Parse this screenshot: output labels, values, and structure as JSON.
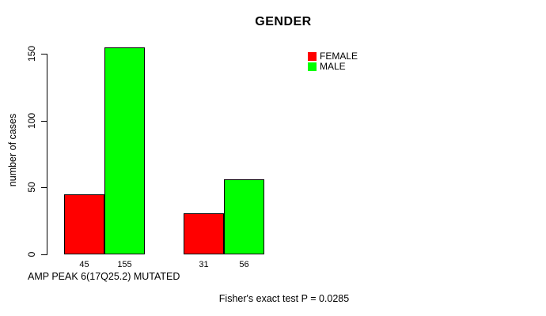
{
  "figure": {
    "title": "GENDER",
    "y_axis": {
      "label": "number of cases"
    },
    "x_axis": {
      "label": "AMP PEAK 6(17Q25.2) MUTATED"
    },
    "annotation": "Fisher's exact test P = 0.0285"
  },
  "chart_data": {
    "type": "bar",
    "title": "GENDER",
    "xlabel": "AMP PEAK 6(17Q25.2) MUTATED",
    "ylabel": "number of cases",
    "ylim": [
      0,
      150
    ],
    "yticks": [
      0,
      50,
      100,
      150
    ],
    "categories": [
      "",
      ""
    ],
    "series": [
      {
        "name": "FEMALE",
        "color": "#FF0000",
        "values": [
          45,
          31
        ]
      },
      {
        "name": "MALE",
        "color": "#00FF00",
        "values": [
          155,
          56
        ]
      }
    ],
    "bar_value_labels": [
      [
        "45",
        "31"
      ],
      [
        "155",
        "56"
      ]
    ],
    "annotation": "Fisher's exact test P = 0.0285",
    "legend_position": "top-right",
    "grid": false
  }
}
